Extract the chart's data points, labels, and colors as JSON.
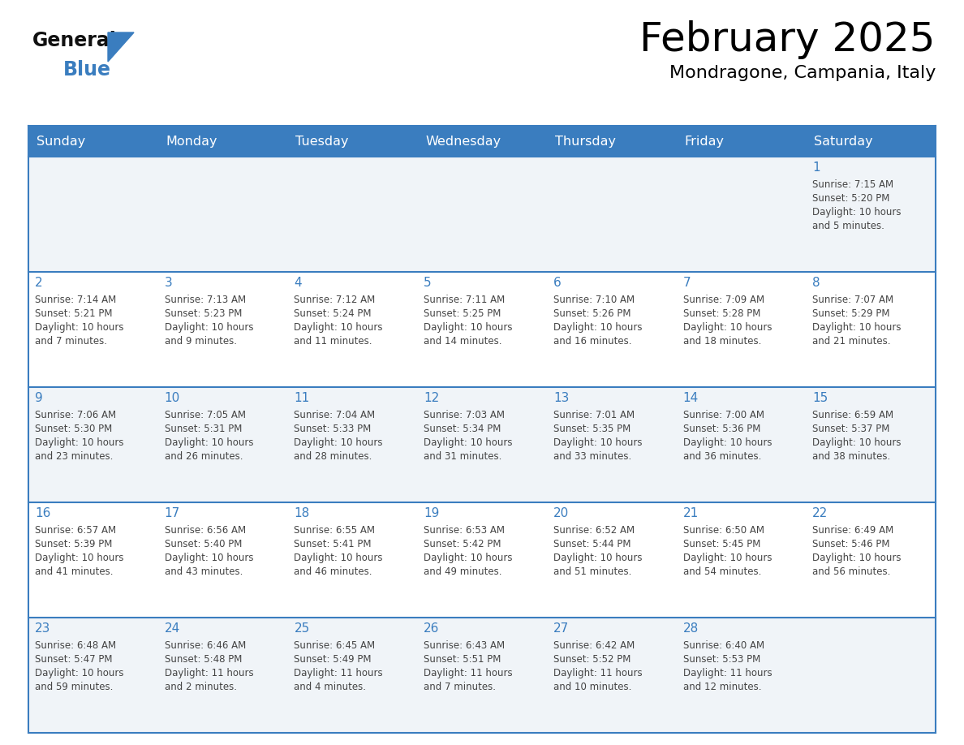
{
  "title": "February 2025",
  "subtitle": "Mondragone, Campania, Italy",
  "header_bg": "#3a7dbf",
  "header_text": "#ffffff",
  "border_color": "#3a7dbf",
  "cell_bg_odd": "#f0f4f8",
  "cell_bg_even": "#ffffff",
  "title_color": "#000000",
  "subtitle_color": "#000000",
  "day_number_color": "#3a7dbf",
  "cell_text_color": "#444444",
  "logo_general_color": "#111111",
  "logo_blue_color": "#3a7dbf",
  "logo_triangle_color": "#3a7dbf",
  "day_headers": [
    "Sunday",
    "Monday",
    "Tuesday",
    "Wednesday",
    "Thursday",
    "Friday",
    "Saturday"
  ],
  "days": [
    {
      "day": 1,
      "col": 6,
      "row": 0,
      "sunrise": "7:15 AM",
      "sunset": "5:20 PM",
      "daylight_hours": 10,
      "daylight_minutes": 5
    },
    {
      "day": 2,
      "col": 0,
      "row": 1,
      "sunrise": "7:14 AM",
      "sunset": "5:21 PM",
      "daylight_hours": 10,
      "daylight_minutes": 7
    },
    {
      "day": 3,
      "col": 1,
      "row": 1,
      "sunrise": "7:13 AM",
      "sunset": "5:23 PM",
      "daylight_hours": 10,
      "daylight_minutes": 9
    },
    {
      "day": 4,
      "col": 2,
      "row": 1,
      "sunrise": "7:12 AM",
      "sunset": "5:24 PM",
      "daylight_hours": 10,
      "daylight_minutes": 11
    },
    {
      "day": 5,
      "col": 3,
      "row": 1,
      "sunrise": "7:11 AM",
      "sunset": "5:25 PM",
      "daylight_hours": 10,
      "daylight_minutes": 14
    },
    {
      "day": 6,
      "col": 4,
      "row": 1,
      "sunrise": "7:10 AM",
      "sunset": "5:26 PM",
      "daylight_hours": 10,
      "daylight_minutes": 16
    },
    {
      "day": 7,
      "col": 5,
      "row": 1,
      "sunrise": "7:09 AM",
      "sunset": "5:28 PM",
      "daylight_hours": 10,
      "daylight_minutes": 18
    },
    {
      "day": 8,
      "col": 6,
      "row": 1,
      "sunrise": "7:07 AM",
      "sunset": "5:29 PM",
      "daylight_hours": 10,
      "daylight_minutes": 21
    },
    {
      "day": 9,
      "col": 0,
      "row": 2,
      "sunrise": "7:06 AM",
      "sunset": "5:30 PM",
      "daylight_hours": 10,
      "daylight_minutes": 23
    },
    {
      "day": 10,
      "col": 1,
      "row": 2,
      "sunrise": "7:05 AM",
      "sunset": "5:31 PM",
      "daylight_hours": 10,
      "daylight_minutes": 26
    },
    {
      "day": 11,
      "col": 2,
      "row": 2,
      "sunrise": "7:04 AM",
      "sunset": "5:33 PM",
      "daylight_hours": 10,
      "daylight_minutes": 28
    },
    {
      "day": 12,
      "col": 3,
      "row": 2,
      "sunrise": "7:03 AM",
      "sunset": "5:34 PM",
      "daylight_hours": 10,
      "daylight_minutes": 31
    },
    {
      "day": 13,
      "col": 4,
      "row": 2,
      "sunrise": "7:01 AM",
      "sunset": "5:35 PM",
      "daylight_hours": 10,
      "daylight_minutes": 33
    },
    {
      "day": 14,
      "col": 5,
      "row": 2,
      "sunrise": "7:00 AM",
      "sunset": "5:36 PM",
      "daylight_hours": 10,
      "daylight_minutes": 36
    },
    {
      "day": 15,
      "col": 6,
      "row": 2,
      "sunrise": "6:59 AM",
      "sunset": "5:37 PM",
      "daylight_hours": 10,
      "daylight_minutes": 38
    },
    {
      "day": 16,
      "col": 0,
      "row": 3,
      "sunrise": "6:57 AM",
      "sunset": "5:39 PM",
      "daylight_hours": 10,
      "daylight_minutes": 41
    },
    {
      "day": 17,
      "col": 1,
      "row": 3,
      "sunrise": "6:56 AM",
      "sunset": "5:40 PM",
      "daylight_hours": 10,
      "daylight_minutes": 43
    },
    {
      "day": 18,
      "col": 2,
      "row": 3,
      "sunrise": "6:55 AM",
      "sunset": "5:41 PM",
      "daylight_hours": 10,
      "daylight_minutes": 46
    },
    {
      "day": 19,
      "col": 3,
      "row": 3,
      "sunrise": "6:53 AM",
      "sunset": "5:42 PM",
      "daylight_hours": 10,
      "daylight_minutes": 49
    },
    {
      "day": 20,
      "col": 4,
      "row": 3,
      "sunrise": "6:52 AM",
      "sunset": "5:44 PM",
      "daylight_hours": 10,
      "daylight_minutes": 51
    },
    {
      "day": 21,
      "col": 5,
      "row": 3,
      "sunrise": "6:50 AM",
      "sunset": "5:45 PM",
      "daylight_hours": 10,
      "daylight_minutes": 54
    },
    {
      "day": 22,
      "col": 6,
      "row": 3,
      "sunrise": "6:49 AM",
      "sunset": "5:46 PM",
      "daylight_hours": 10,
      "daylight_minutes": 56
    },
    {
      "day": 23,
      "col": 0,
      "row": 4,
      "sunrise": "6:48 AM",
      "sunset": "5:47 PM",
      "daylight_hours": 10,
      "daylight_minutes": 59
    },
    {
      "day": 24,
      "col": 1,
      "row": 4,
      "sunrise": "6:46 AM",
      "sunset": "5:48 PM",
      "daylight_hours": 11,
      "daylight_minutes": 2
    },
    {
      "day": 25,
      "col": 2,
      "row": 4,
      "sunrise": "6:45 AM",
      "sunset": "5:49 PM",
      "daylight_hours": 11,
      "daylight_minutes": 4
    },
    {
      "day": 26,
      "col": 3,
      "row": 4,
      "sunrise": "6:43 AM",
      "sunset": "5:51 PM",
      "daylight_hours": 11,
      "daylight_minutes": 7
    },
    {
      "day": 27,
      "col": 4,
      "row": 4,
      "sunrise": "6:42 AM",
      "sunset": "5:52 PM",
      "daylight_hours": 11,
      "daylight_minutes": 10
    },
    {
      "day": 28,
      "col": 5,
      "row": 4,
      "sunrise": "6:40 AM",
      "sunset": "5:53 PM",
      "daylight_hours": 11,
      "daylight_minutes": 12
    }
  ]
}
